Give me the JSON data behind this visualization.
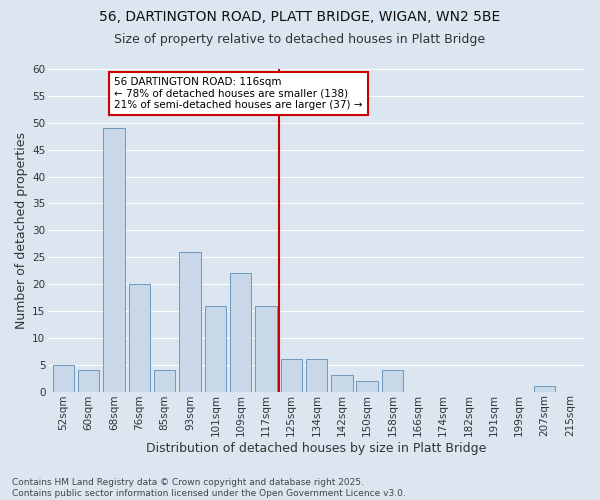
{
  "title1": "56, DARTINGTON ROAD, PLATT BRIDGE, WIGAN, WN2 5BE",
  "title2": "Size of property relative to detached houses in Platt Bridge",
  "xlabel": "Distribution of detached houses by size in Platt Bridge",
  "ylabel": "Number of detached properties",
  "categories": [
    "52sqm",
    "60sqm",
    "68sqm",
    "76sqm",
    "85sqm",
    "93sqm",
    "101sqm",
    "109sqm",
    "117sqm",
    "125sqm",
    "134sqm",
    "142sqm",
    "150sqm",
    "158sqm",
    "166sqm",
    "174sqm",
    "182sqm",
    "191sqm",
    "199sqm",
    "207sqm",
    "215sqm"
  ],
  "values": [
    5,
    4,
    49,
    20,
    4,
    26,
    16,
    22,
    16,
    6,
    6,
    3,
    2,
    4,
    0,
    0,
    0,
    0,
    0,
    1,
    0
  ],
  "bar_color": "#c8d8e8",
  "bar_edge_color": "#5b8db8",
  "vline_color": "#cc0000",
  "vline_x": 8.5,
  "annotation_text": "56 DARTINGTON ROAD: 116sqm\n← 78% of detached houses are smaller (138)\n21% of semi-detached houses are larger (37) →",
  "annotation_box_edgecolor": "#cc0000",
  "background_color": "#dce6f0",
  "grid_color": "#ffffff",
  "ylim": [
    0,
    60
  ],
  "yticks": [
    0,
    5,
    10,
    15,
    20,
    25,
    30,
    35,
    40,
    45,
    50,
    55,
    60
  ],
  "footer": "Contains HM Land Registry data © Crown copyright and database right 2025.\nContains public sector information licensed under the Open Government Licence v3.0.",
  "title_fontsize": 10,
  "subtitle_fontsize": 9,
  "axis_label_fontsize": 9,
  "tick_fontsize": 7.5,
  "footer_fontsize": 6.5,
  "ann_fontsize": 7.5
}
